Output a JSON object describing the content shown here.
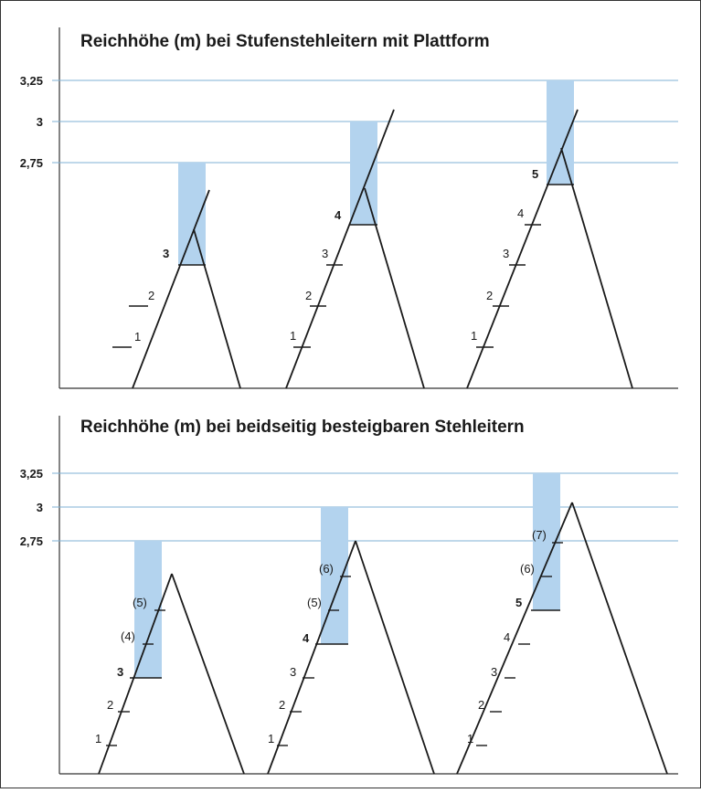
{
  "panels": [
    {
      "title": "Reichhöhe (m) bei Stufenstehleitern mit Plattform",
      "yticks": [
        "3,25",
        "3",
        "2,75"
      ],
      "ladders": [
        {
          "steps": [
            "1",
            "2"
          ],
          "platform_step": "3",
          "reach_m": 2.75
        },
        {
          "steps": [
            "1",
            "2",
            "3"
          ],
          "platform_step": "4",
          "reach_m": 3.0
        },
        {
          "steps": [
            "1",
            "2",
            "3",
            "4"
          ],
          "platform_step": "5",
          "reach_m": 3.25
        }
      ]
    },
    {
      "title": "Reichhöhe (m) bei beidseitig besteigbaren Stehleitern",
      "yticks": [
        "3,25",
        "3",
        "2,75"
      ],
      "ladders": [
        {
          "steps": [
            "1",
            "2"
          ],
          "top_step": "3",
          "extra_steps": [
            "(4)",
            "(5)"
          ],
          "reach_m": 2.75
        },
        {
          "steps": [
            "1",
            "2",
            "3"
          ],
          "top_step": "4",
          "extra_steps": [
            "(5)",
            "(6)"
          ],
          "reach_m": 3.0
        },
        {
          "steps": [
            "1",
            "2",
            "3",
            "4"
          ],
          "top_step": "5",
          "extra_steps": [
            "(6)",
            "(7)"
          ],
          "reach_m": 3.25
        }
      ]
    }
  ],
  "colors": {
    "reach_bar": "#b3d3ee",
    "gridline": "#7fb2d4",
    "line": "#1a1a1a"
  }
}
